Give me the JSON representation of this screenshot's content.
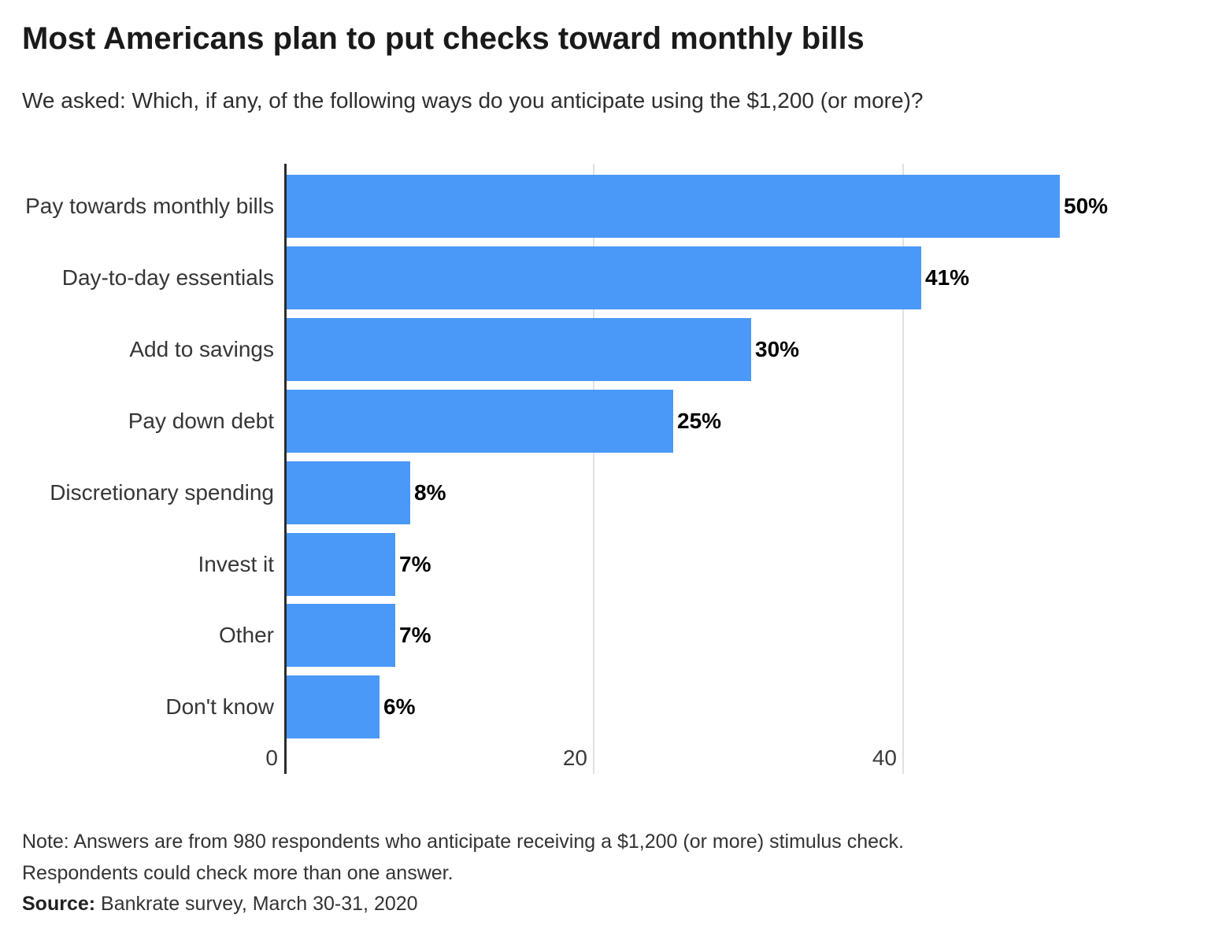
{
  "header": {
    "title": "Most Americans plan to put checks toward monthly bills",
    "subtitle": "We asked: Which, if any, of the following ways do you anticipate using the $1,200 (or more)?"
  },
  "chart_data": {
    "type": "bar",
    "orientation": "horizontal",
    "categories": [
      "Pay towards monthly bills",
      "Day-to-day essentials",
      "Add to savings",
      "Pay down debt",
      "Discretionary spending",
      "Invest it",
      "Other",
      "Don't know"
    ],
    "values": [
      50,
      41,
      30,
      25,
      8,
      7,
      7,
      6
    ],
    "value_labels": [
      "50%",
      "41%",
      "30%",
      "25%",
      "8%",
      "7%",
      "7%",
      "6%"
    ],
    "x_ticks": [
      "0",
      "20",
      "40"
    ],
    "x_tick_values": [
      0,
      20,
      40
    ],
    "xlim": [
      0,
      60
    ],
    "xlabel": "",
    "ylabel": "",
    "legend": "none",
    "grid": "vertical gridlines at ticks, drawn behind bars",
    "bar_color": "#4A98F7",
    "axis_color": "#2b2b2b",
    "gridline_color": "#e1e1e1",
    "value_label_color": "#000000",
    "label_color": "#363636"
  },
  "footer": {
    "note_line1": "Note: Answers are from 980 respondents who anticipate receiving a $1,200 (or more) stimulus check.",
    "note_line2": "Respondents could check more than one answer.",
    "source_label": "Source:",
    "source_text": " Bankrate survey, March 30-31, 2020"
  }
}
